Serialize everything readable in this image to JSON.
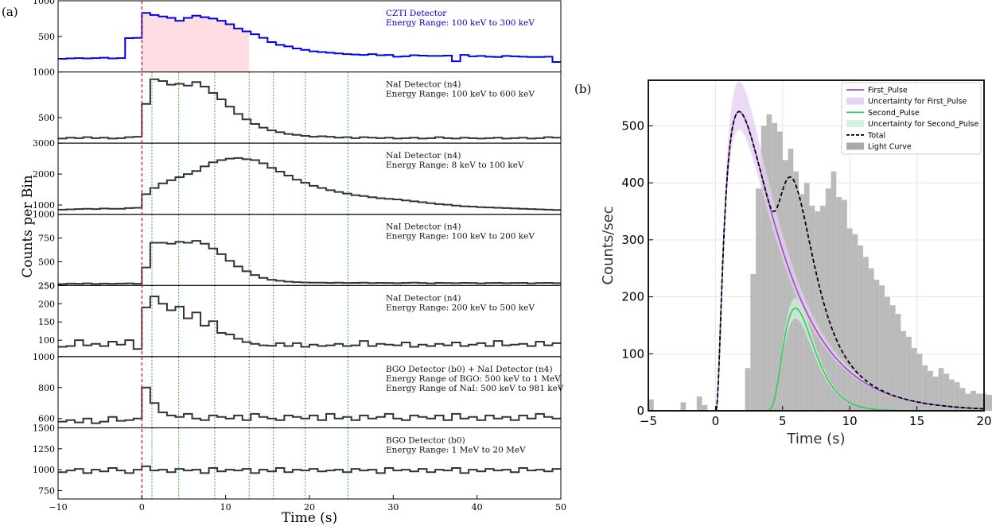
{
  "panel_labels": {
    "a": "(a)",
    "b": "(b)"
  },
  "chart_data": [
    {
      "type": "line",
      "subtype": "stacked-step-light-curves",
      "xlabel": "Time (s)",
      "ylabel": "Counts per Bin",
      "xlim": [
        -10,
        50
      ],
      "xticks": [
        "−10",
        "0",
        "10",
        "20",
        "30",
        "40",
        "50"
      ],
      "trigger_time": 0,
      "pulse_lines_t": [
        1.2,
        4.4,
        8.7,
        12.8,
        15.7,
        19.5,
        24.6
      ],
      "grid": false,
      "panels": [
        {
          "label_lines": [
            "CZTI Detector",
            "Energy Range: 100 keV to 300 keV"
          ],
          "label_color": "#0000cc",
          "line_color": "#0000ee",
          "ylim": [
            0,
            1000
          ],
          "yticks": [
            "500",
            "1000"
          ],
          "ytick_vals": [
            500,
            1000
          ],
          "shade": {
            "from": 0,
            "to": 12.8,
            "color": "#ffdde3"
          },
          "t0": -10,
          "dt": 1,
          "values": [
            185,
            190,
            195,
            190,
            195,
            200,
            190,
            195,
            475,
            480,
            830,
            800,
            780,
            760,
            720,
            760,
            790,
            770,
            750,
            720,
            670,
            610,
            570,
            530,
            480,
            420,
            380,
            360,
            330,
            310,
            290,
            280,
            270,
            260,
            250,
            245,
            240,
            250,
            235,
            240,
            215,
            220,
            235,
            230,
            225,
            225,
            230,
            150,
            240,
            220,
            225,
            215,
            210,
            225,
            220,
            215,
            210,
            210,
            215,
            140
          ]
        },
        {
          "label_lines": [
            "NaI Detector (n4)",
            "Energy Range: 100 keV to 600 keV"
          ],
          "label_color": "#111111",
          "line_color": "#333333",
          "ylim": [
            220,
            1000
          ],
          "yticks": [
            "500",
            "1000"
          ],
          "ytick_vals": [
            500,
            1000
          ],
          "t0": -10,
          "dt": 1,
          "values": [
            270,
            280,
            275,
            285,
            275,
            280,
            270,
            275,
            285,
            290,
            650,
            920,
            900,
            860,
            870,
            850,
            890,
            840,
            770,
            700,
            620,
            540,
            480,
            430,
            390,
            360,
            340,
            320,
            310,
            300,
            290,
            295,
            290,
            280,
            285,
            275,
            285,
            280,
            275,
            280,
            270,
            275,
            280,
            270,
            275,
            285,
            275,
            270,
            280,
            275,
            270,
            275,
            280,
            270,
            275,
            280,
            270,
            275,
            285,
            280
          ]
        },
        {
          "label_lines": [
            "NaI Detector (n4)",
            "Energy Range: 8 keV to 100 keV"
          ],
          "label_color": "#111111",
          "line_color": "#333333",
          "ylim": [
            700,
            3000
          ],
          "yticks": [
            "1000",
            "2000",
            "3000"
          ],
          "ytick_vals": [
            1000,
            2000,
            3000
          ],
          "t0": -10,
          "dt": 1,
          "values": [
            850,
            860,
            870,
            880,
            870,
            890,
            880,
            880,
            900,
            910,
            1350,
            1550,
            1700,
            1800,
            1900,
            2000,
            2100,
            2250,
            2380,
            2450,
            2500,
            2520,
            2480,
            2450,
            2350,
            2200,
            2080,
            1950,
            1820,
            1720,
            1620,
            1550,
            1480,
            1420,
            1370,
            1320,
            1290,
            1250,
            1220,
            1200,
            1180,
            1150,
            1120,
            1090,
            1060,
            1030,
            1010,
            980,
            960,
            950,
            930,
            920,
            910,
            900,
            890,
            880,
            870,
            860,
            850,
            840
          ]
        },
        {
          "label_lines": [
            "NaI Detector (n4)",
            "Energy Range: 100 keV to 200 keV"
          ],
          "label_color": "#111111",
          "line_color": "#333333",
          "ylim": [
            250,
            1000
          ],
          "yticks": [
            "250",
            "500",
            "750",
            "1000"
          ],
          "ytick_vals": [
            250,
            500,
            750,
            1000
          ],
          "t0": -10,
          "dt": 1,
          "values": [
            265,
            270,
            268,
            272,
            266,
            270,
            268,
            270,
            272,
            268,
            440,
            700,
            700,
            690,
            710,
            700,
            720,
            690,
            640,
            580,
            510,
            450,
            400,
            360,
            330,
            310,
            300,
            290,
            285,
            282,
            280,
            280,
            278,
            280,
            276,
            278,
            280,
            275,
            278,
            276,
            274,
            278,
            280,
            276,
            272,
            278,
            276,
            274,
            278,
            276,
            272,
            276,
            278,
            274,
            276,
            278,
            272,
            276,
            278,
            274
          ]
        },
        {
          "label_lines": [
            "NaI Detector (n4)",
            "Energy Range: 200 keV to 500 keV"
          ],
          "label_color": "#111111",
          "line_color": "#333333",
          "ylim": [
            55,
            250
          ],
          "yticks": [
            "100",
            "150",
            "200",
            "250"
          ],
          "ytick_vals": [
            100,
            150,
            200,
            250
          ],
          "t0": -10,
          "dt": 1,
          "values": [
            82,
            84,
            100,
            86,
            90,
            84,
            96,
            88,
            100,
            76,
            190,
            220,
            200,
            182,
            192,
            160,
            176,
            140,
            152,
            120,
            116,
            104,
            95,
            90,
            86,
            85,
            92,
            84,
            92,
            82,
            88,
            84,
            86,
            90,
            84,
            86,
            98,
            84,
            90,
            88,
            86,
            94,
            82,
            88,
            84,
            90,
            86,
            94,
            84,
            88,
            92,
            84,
            98,
            86,
            88,
            90,
            84,
            96,
            86,
            92
          ]
        },
        {
          "label_lines": [
            "BGO Detector (b0) + NaI Detector (n4)",
            "Energy Range of BGO: 500 keV to 1 MeV",
            "Energy Range of NaI: 500 keV to 981 keV"
          ],
          "label_color": "#111111",
          "line_color": "#333333",
          "ylim": [
            540,
            1000
          ],
          "yticks": [
            "600",
            "800",
            "1000"
          ],
          "ytick_vals": [
            600,
            800,
            1000
          ],
          "t0": -10,
          "dt": 1,
          "values": [
            580,
            590,
            575,
            600,
            570,
            580,
            610,
            585,
            590,
            600,
            800,
            700,
            640,
            620,
            610,
            630,
            600,
            590,
            620,
            610,
            600,
            620,
            590,
            630,
            610,
            600,
            590,
            620,
            610,
            600,
            620,
            590,
            630,
            600,
            610,
            590,
            620,
            600,
            610,
            630,
            600,
            590,
            620,
            610,
            600,
            620,
            590,
            630,
            600,
            610,
            590,
            620,
            600,
            610,
            590,
            620,
            600,
            630,
            610,
            600
          ]
        },
        {
          "label_lines": [
            "BGO Detector (b0)",
            "Energy Range: 1 MeV to 20 MeV"
          ],
          "label_color": "#111111",
          "line_color": "#333333",
          "ylim": [
            650,
            1500
          ],
          "yticks": [
            "750",
            "1000",
            "1250",
            "1500"
          ],
          "ytick_vals": [
            750,
            1000,
            1250,
            1500
          ],
          "t0": -10,
          "dt": 1,
          "values": [
            970,
            990,
            1010,
            960,
            1000,
            980,
            1020,
            990,
            960,
            1000,
            1040,
            990,
            1000,
            970,
            1010,
            990,
            1000,
            960,
            1020,
            980,
            1000,
            990,
            1010,
            960,
            1000,
            980,
            1020,
            970,
            1000,
            990,
            1010,
            980,
            990,
            1000,
            970,
            1010,
            990,
            1000,
            960,
            1020,
            990,
            1000,
            980,
            1010,
            970,
            1000,
            990,
            1020,
            960,
            1000,
            980,
            1010,
            990,
            1000,
            970,
            1020,
            990,
            1000,
            980,
            1010
          ]
        }
      ]
    },
    {
      "type": "bar",
      "subtype": "histogram-with-pulse-fits",
      "xlabel": "Time (s)",
      "ylabel": "Counts/sec",
      "xlim": [
        -5,
        20
      ],
      "ylim": [
        0,
        580
      ],
      "xticks": [
        "−5",
        "0",
        "5",
        "10",
        "15",
        "20"
      ],
      "xtick_vals": [
        -5,
        0,
        5,
        10,
        15,
        20
      ],
      "yticks": [
        "0",
        "100",
        "200",
        "300",
        "400",
        "500"
      ],
      "ytick_vals": [
        0,
        100,
        200,
        300,
        400,
        500
      ],
      "grid": true,
      "legend_position": "top-right",
      "legend": [
        {
          "label": "First_Pulse",
          "kind": "line",
          "color": "#9b4fbf"
        },
        {
          "label": "Uncertainty for First_Pulse",
          "kind": "band",
          "color": "#e3cdef"
        },
        {
          "label": "Second_Pulse",
          "kind": "line",
          "color": "#2ecc5a"
        },
        {
          "label": "Uncertainty for Second_Pulse",
          "kind": "band",
          "color": "#cdf2da"
        },
        {
          "label": "Total",
          "kind": "dashed",
          "color": "#000000"
        },
        {
          "label": "Light Curve",
          "kind": "box",
          "color": "#aaaaaa"
        }
      ],
      "bar_x0": -5,
      "bar_width": 0.4,
      "bar_values": [
        20,
        0,
        0,
        0,
        0,
        0,
        15,
        0,
        0,
        25,
        10,
        0,
        0,
        0,
        0,
        0,
        0,
        0,
        75,
        240,
        390,
        500,
        520,
        505,
        490,
        440,
        460,
        420,
        380,
        400,
        360,
        350,
        360,
        390,
        420,
        375,
        370,
        320,
        310,
        290,
        270,
        250,
        230,
        220,
        200,
        185,
        170,
        140,
        130,
        110,
        100,
        80,
        70,
        60,
        75,
        65,
        55,
        50,
        40,
        30,
        35,
        30,
        30,
        28,
        25,
        20,
        18,
        22,
        15,
        12,
        15,
        10,
        12,
        8,
        10,
        5,
        8,
        6,
        5,
        3,
        2,
        0,
        2,
        0,
        0
      ]
    }
  ]
}
